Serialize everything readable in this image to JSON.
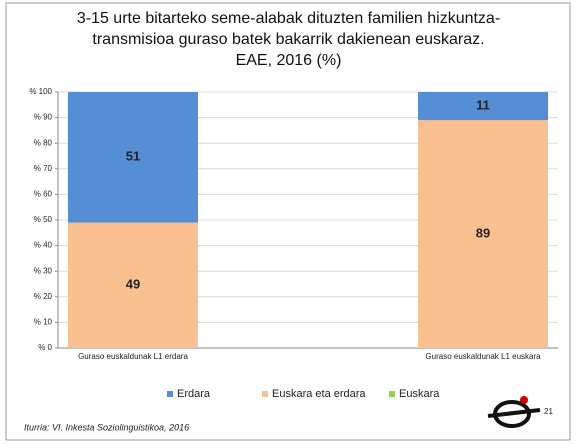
{
  "chart_data": {
    "type": "stacked_bar",
    "title": "3-15 urte bitarteko seme-alabak dituzten familien hizkuntza-\ntransmisioa guraso batek bakarrik dakienean euskaraz.\nEAE, 2016 (%)",
    "categories": [
      "Guraso euskaldunak L1 erdara",
      "Guraso euskaldunak L1 euskara"
    ],
    "series": [
      {
        "name": "Erdara",
        "color": "#558ed5",
        "values": [
          51,
          11
        ]
      },
      {
        "name": "Euskara eta erdara",
        "color": "#fac090",
        "values": [
          49,
          89
        ]
      },
      {
        "name": "Euskara",
        "color": "#92d050",
        "values": [
          0,
          0
        ]
      }
    ],
    "ylim": [
      0,
      100
    ],
    "yticks": [
      {
        "value": 0,
        "label": "% 0"
      },
      {
        "value": 10,
        "label": "% 10"
      },
      {
        "value": 20,
        "label": "% 20"
      },
      {
        "value": 30,
        "label": "% 30"
      },
      {
        "value": 40,
        "label": "% 40"
      },
      {
        "value": 50,
        "label": "% 50"
      },
      {
        "value": 60,
        "label": "% 60"
      },
      {
        "value": 70,
        "label": "% 70"
      },
      {
        "value": 80,
        "label": "% 80"
      },
      {
        "value": 90,
        "label": "% 90"
      },
      {
        "value": 100,
        "label": "% 100"
      }
    ],
    "grid": true,
    "legend": "bottom",
    "source": "Iturria: VI. Inkesta Soziolinguistikoa, 2016",
    "page_number": "21"
  }
}
